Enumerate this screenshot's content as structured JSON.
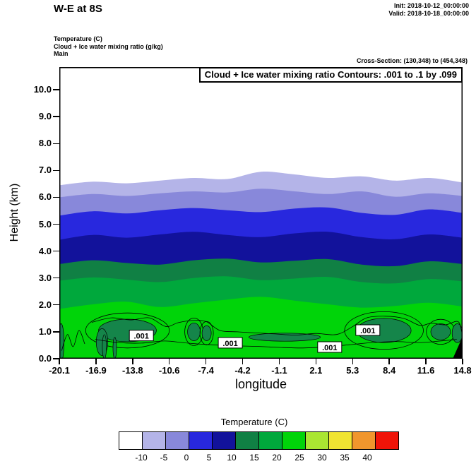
{
  "header": {
    "title": "W-E at 8S",
    "init": "Init: 2018-10-12_00:00:00",
    "valid": "Valid: 2018-10-18_00:00:00",
    "field1": "Temperature  (C)",
    "field2": "Cloud + Ice water mixing ratio  (g/kg)",
    "field3": "Main",
    "cross_section": "Cross-Section: (130,348) to (454,348)"
  },
  "plot": {
    "contour_note": "Cloud + Ice water mixing ratio Contours: .001 to .1 by .099",
    "ylabel": "Height (km)",
    "xlabel": "longitude"
  },
  "colorbar": {
    "title": "Temperature  (C)",
    "labels": [
      "-10",
      "-5",
      "0",
      "5",
      "10",
      "15",
      "20",
      "25",
      "30",
      "35",
      "40"
    ],
    "colors": [
      "#ffffff",
      "#b4b4e8",
      "#8888da",
      "#2828de",
      "#12129b",
      "#108044",
      "#00a83c",
      "#00d409",
      "#aae632",
      "#f0e432",
      "#f0962d",
      "#f01408"
    ]
  },
  "chart_data": {
    "type": "filled-contour-cross-section",
    "title": "Cloud + Ice water mixing ratio Contours: .001 to .1 by .099",
    "xlabel": "longitude",
    "ylabel": "Height (km)",
    "x_ticks": [
      "-20.1",
      "-16.9",
      "-13.8",
      "-10.6",
      "-7.4",
      "-4.2",
      "-1.1",
      "2.1",
      "5.3",
      "8.4",
      "11.6",
      "14.8"
    ],
    "y_tick_labels": [
      "0.0",
      "1.0",
      "2.0",
      "3.0",
      "4.0",
      "5.0",
      "6.0",
      "7.0",
      "8.0",
      "9.0",
      "10.0"
    ],
    "x_range": [
      -20.1,
      14.8
    ],
    "y_range": [
      0,
      10.84
    ],
    "temperature_boundaries_c": [
      -10,
      -5,
      0,
      5,
      10,
      15,
      20
    ],
    "sample_lons": [
      -20.1,
      -17.19,
      -14.28,
      -11.38,
      -8.47,
      -5.56,
      -2.65,
      0.26,
      3.17,
      6.08,
      8.98,
      11.89,
      14.8
    ],
    "boundary_heights_km": [
      [
        6.45,
        6.58,
        6.52,
        6.62,
        6.72,
        6.68,
        6.95,
        6.85,
        6.72,
        6.78,
        6.62,
        6.72,
        6.55
      ],
      [
        6.0,
        6.12,
        6.05,
        6.15,
        6.22,
        6.18,
        6.32,
        6.22,
        6.12,
        6.22,
        6.02,
        6.15,
        6.05
      ],
      [
        5.32,
        5.48,
        5.4,
        5.52,
        5.6,
        5.52,
        5.45,
        5.58,
        5.62,
        5.42,
        5.35,
        5.55,
        5.42
      ],
      [
        4.42,
        4.6,
        4.5,
        4.62,
        4.72,
        4.6,
        4.52,
        4.66,
        4.72,
        4.52,
        4.44,
        4.62,
        4.5
      ],
      [
        3.52,
        3.66,
        3.56,
        3.5,
        3.66,
        3.72,
        3.58,
        3.64,
        3.7,
        3.5,
        3.44,
        3.62,
        3.52
      ],
      [
        2.9,
        3.02,
        2.94,
        2.85,
        3.0,
        3.06,
        2.92,
        2.98,
        3.04,
        2.85,
        2.8,
        2.96,
        2.88
      ],
      [
        1.85,
        2.02,
        2.12,
        1.92,
        2.06,
        2.2,
        2.3,
        2.16,
        2.02,
        1.9,
        1.96,
        2.08,
        1.94
      ]
    ],
    "band_colors": [
      "#ffffff",
      "#b4b4e8",
      "#8888da",
      "#2828de",
      "#12129b",
      "#108044",
      "#00a83c",
      "#00d409"
    ],
    "cloud_fill": "#15854a",
    "cloud_patches": [
      {
        "lon": -14.2,
        "height": 1.05,
        "lon_radius": 2.5,
        "height_radius": 0.42,
        "outline": true
      },
      {
        "lon": -16.4,
        "height": 0.62,
        "lon_radius": 0.5,
        "height_radius": 0.5,
        "outline": false
      },
      {
        "lon": -16.2,
        "height": 0.45,
        "lon_radius": 0.18,
        "height_radius": 0.45,
        "outline": false
      },
      {
        "lon": -15.3,
        "height": 0.4,
        "lon_radius": 0.15,
        "height_radius": 0.4,
        "outline": false
      },
      {
        "lon": -19.95,
        "height": 0.6,
        "lon_radius": 0.25,
        "height_radius": 0.7,
        "outline": false
      },
      {
        "lon": -8.45,
        "height": 1.0,
        "lon_radius": 0.55,
        "height_radius": 0.33,
        "outline": true
      },
      {
        "lon": -7.35,
        "height": 0.95,
        "lon_radius": 0.4,
        "height_radius": 0.28,
        "outline": true
      },
      {
        "lon": -0.6,
        "height": 0.8,
        "lon_radius": 3.1,
        "height_radius": 0.15,
        "outline": false
      },
      {
        "lon": 8.0,
        "height": 1.05,
        "lon_radius": 2.35,
        "height_radius": 0.45,
        "outline": true
      },
      {
        "lon": 12.9,
        "height": 1.0,
        "lon_radius": 0.85,
        "height_radius": 0.3,
        "outline": true
      },
      {
        "lon": 14.35,
        "height": 0.95,
        "lon_radius": 0.45,
        "height_radius": 0.35,
        "outline": false
      }
    ],
    "contour_lines": [
      [
        [
          -19.9,
          0.3
        ],
        [
          -19.4,
          0.9
        ],
        [
          -18.9,
          0.45
        ],
        [
          -18.4,
          1.05
        ],
        [
          -17.9,
          0.55
        ]
      ],
      [
        [
          -17.3,
          1.35
        ],
        [
          -15.6,
          1.52
        ],
        [
          -13.9,
          1.44
        ],
        [
          -12.3,
          1.52
        ],
        [
          -10.9,
          1.2
        ],
        [
          -9.8,
          1.34
        ],
        [
          -8.6,
          1.42
        ],
        [
          -7.4,
          1.38
        ],
        [
          -6.2,
          1.05
        ],
        [
          -4.7,
          1.0
        ],
        [
          -3.1,
          0.96
        ],
        [
          -1.4,
          0.92
        ],
        [
          0.4,
          0.88
        ],
        [
          2.1,
          0.94
        ],
        [
          3.9,
          0.9
        ],
        [
          5.3,
          1.2
        ],
        [
          6.5,
          1.52
        ],
        [
          8.1,
          1.58
        ],
        [
          9.7,
          1.5
        ],
        [
          11.1,
          1.24
        ],
        [
          12.1,
          1.32
        ],
        [
          13.3,
          1.26
        ],
        [
          14.4,
          1.38
        ],
        [
          14.75,
          0.95
        ]
      ],
      [
        [
          -17.0,
          0.72
        ],
        [
          -15.0,
          0.6
        ],
        [
          -13.0,
          0.58
        ],
        [
          -11.0,
          0.66
        ],
        [
          -9.0,
          0.58
        ],
        [
          -7.0,
          0.52
        ],
        [
          -5.0,
          0.48
        ],
        [
          -3.0,
          0.46
        ],
        [
          -1.0,
          0.42
        ],
        [
          1.0,
          0.4
        ],
        [
          3.0,
          0.44
        ],
        [
          5.0,
          0.52
        ],
        [
          7.0,
          0.6
        ],
        [
          9.0,
          0.64
        ],
        [
          11.0,
          0.6
        ],
        [
          12.9,
          0.66
        ],
        [
          14.3,
          0.72
        ]
      ]
    ],
    "contour_labels": [
      {
        "lon": -13.0,
        "height": 0.85,
        "text": ".001"
      },
      {
        "lon": -5.3,
        "height": 0.58,
        "text": ".001"
      },
      {
        "lon": 3.3,
        "height": 0.42,
        "text": ".001"
      },
      {
        "lon": 6.6,
        "height": 1.05,
        "text": ".001"
      }
    ],
    "terrain": [
      [
        13.95,
        0
      ],
      [
        14.8,
        0
      ],
      [
        14.8,
        0.82
      ]
    ]
  }
}
